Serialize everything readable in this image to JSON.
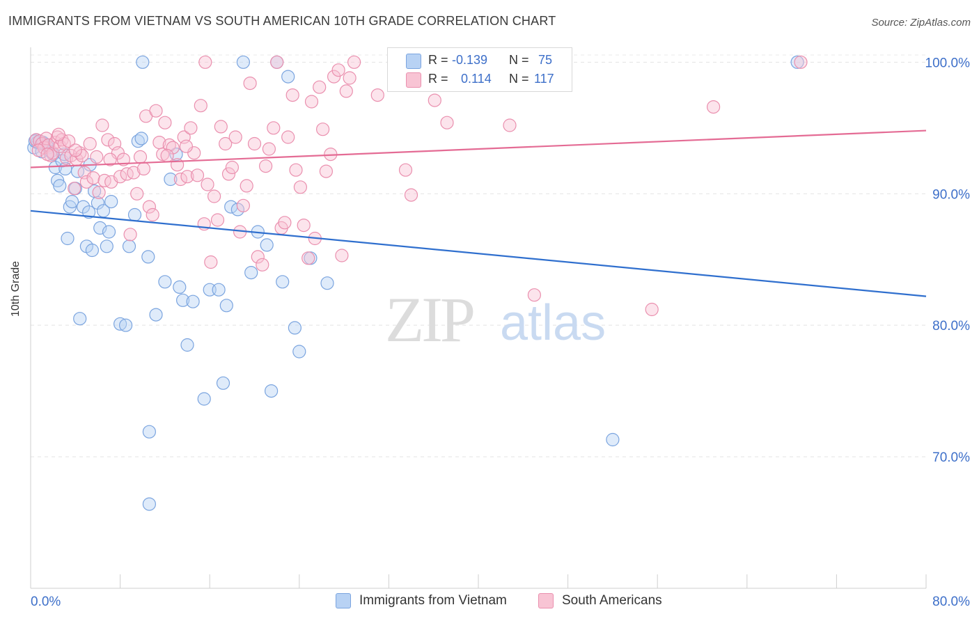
{
  "title": "IMMIGRANTS FROM VIETNAM VS SOUTH AMERICAN 10TH GRADE CORRELATION CHART",
  "source": "Source: ZipAtlas.com",
  "watermark": {
    "zip": "ZIP",
    "atlas": "atlas"
  },
  "legend": {
    "r_label": "R =",
    "n_label": "N =",
    "series": [
      {
        "r": "-0.139",
        "n": "75",
        "fill": "#b8d2f4",
        "stroke": "#7aa4df"
      },
      {
        "r": "0.114",
        "n": "117",
        "fill": "#f8c4d4",
        "stroke": "#ea8fae"
      }
    ]
  },
  "colors": {
    "blue_line": "#2f6fce",
    "pink_line": "#e46b94",
    "axis_text": "#3d6fc9"
  },
  "chart_data": {
    "type": "scatter",
    "title": "IMMIGRANTS FROM VIETNAM VS SOUTH AMERICAN 10TH GRADE CORRELATION CHART",
    "xlabel": "",
    "ylabel": "10th Grade",
    "xlim": [
      0,
      80
    ],
    "ylim": [
      60,
      101.5
    ],
    "x_tick_labels": [
      "0.0%",
      "80.0%"
    ],
    "y_ticks": [
      70,
      80,
      90,
      100
    ],
    "y_tick_labels": [
      "70.0%",
      "80.0%",
      "90.0%",
      "100.0%"
    ],
    "grid": true,
    "legend_position": "bottom",
    "series": [
      {
        "name": "Immigrants from Vietnam",
        "color": "#7aa4df",
        "trend": {
          "x": [
            0,
            80
          ],
          "y": [
            88.7,
            82.2
          ]
        },
        "points": [
          [
            0.3,
            93.5
          ],
          [
            0.5,
            94.1
          ],
          [
            0.6,
            93.9
          ],
          [
            0.8,
            94.0
          ],
          [
            1.0,
            93.2
          ],
          [
            1.2,
            93.8
          ],
          [
            1.4,
            93.7
          ],
          [
            1.6,
            93.5
          ],
          [
            1.8,
            93.2
          ],
          [
            2.0,
            93.0
          ],
          [
            2.2,
            92.0
          ],
          [
            2.4,
            91.0
          ],
          [
            2.6,
            90.6
          ],
          [
            2.8,
            92.5
          ],
          [
            3.1,
            91.9
          ],
          [
            3.3,
            86.6
          ],
          [
            3.5,
            89.0
          ],
          [
            3.7,
            89.4
          ],
          [
            4.0,
            90.4
          ],
          [
            4.2,
            91.7
          ],
          [
            4.4,
            80.5
          ],
          [
            4.7,
            89.0
          ],
          [
            5.0,
            86.0
          ],
          [
            5.2,
            88.6
          ],
          [
            5.5,
            85.7
          ],
          [
            5.7,
            90.2
          ],
          [
            6.0,
            89.3
          ],
          [
            6.2,
            87.4
          ],
          [
            6.5,
            88.7
          ],
          [
            6.8,
            86.0
          ],
          [
            7.0,
            87.1
          ],
          [
            7.2,
            89.4
          ],
          [
            8.0,
            80.1
          ],
          [
            8.5,
            80.0
          ],
          [
            8.8,
            86.0
          ],
          [
            9.3,
            88.4
          ],
          [
            9.6,
            94.0
          ],
          [
            9.9,
            94.2
          ],
          [
            10.0,
            100.0
          ],
          [
            10.5,
            85.2
          ],
          [
            11.2,
            80.8
          ],
          [
            12.0,
            83.3
          ],
          [
            12.5,
            91.1
          ],
          [
            13.0,
            93.0
          ],
          [
            13.3,
            82.9
          ],
          [
            13.6,
            81.9
          ],
          [
            14.0,
            78.5
          ],
          [
            14.5,
            81.8
          ],
          [
            15.5,
            74.4
          ],
          [
            16.0,
            82.7
          ],
          [
            16.8,
            82.7
          ],
          [
            17.2,
            75.6
          ],
          [
            17.5,
            81.5
          ],
          [
            17.9,
            89.0
          ],
          [
            18.5,
            88.8
          ],
          [
            19.0,
            100.0
          ],
          [
            19.7,
            84.0
          ],
          [
            20.3,
            87.1
          ],
          [
            21.1,
            86.1
          ],
          [
            21.5,
            75.0
          ],
          [
            22.0,
            100.0
          ],
          [
            22.5,
            83.3
          ],
          [
            23.0,
            98.9
          ],
          [
            23.6,
            79.8
          ],
          [
            24.0,
            78.0
          ],
          [
            25.0,
            85.1
          ],
          [
            26.5,
            83.2
          ],
          [
            10.6,
            71.9
          ],
          [
            10.6,
            66.4
          ],
          [
            52.0,
            71.3
          ],
          [
            68.5,
            100.0
          ],
          [
            0.4,
            94.0
          ],
          [
            1.1,
            93.9
          ],
          [
            3.0,
            93.0
          ],
          [
            5.3,
            92.2
          ]
        ]
      },
      {
        "name": "South Americans",
        "color": "#ea8fae",
        "trend": {
          "x": [
            0,
            80
          ],
          "y": [
            92.0,
            94.8
          ]
        },
        "points": [
          [
            0.5,
            94.1
          ],
          [
            0.8,
            94.0
          ],
          [
            1.0,
            93.8
          ],
          [
            1.2,
            93.5
          ],
          [
            1.4,
            94.2
          ],
          [
            1.6,
            93.7
          ],
          [
            1.8,
            92.9
          ],
          [
            2.0,
            93.1
          ],
          [
            2.2,
            93.9
          ],
          [
            2.4,
            94.3
          ],
          [
            2.6,
            93.6
          ],
          [
            2.8,
            94.1
          ],
          [
            3.0,
            93.8
          ],
          [
            3.2,
            92.7
          ],
          [
            3.4,
            94.0
          ],
          [
            3.6,
            92.9
          ],
          [
            3.9,
            90.4
          ],
          [
            4.1,
            92.6
          ],
          [
            4.4,
            93.1
          ],
          [
            4.6,
            92.9
          ],
          [
            4.8,
            91.6
          ],
          [
            5.0,
            90.9
          ],
          [
            5.3,
            93.8
          ],
          [
            5.6,
            91.2
          ],
          [
            5.9,
            92.8
          ],
          [
            6.1,
            90.1
          ],
          [
            6.4,
            95.2
          ],
          [
            6.6,
            91.0
          ],
          [
            6.9,
            94.1
          ],
          [
            7.2,
            90.9
          ],
          [
            7.5,
            93.8
          ],
          [
            7.8,
            93.1
          ],
          [
            8.0,
            91.3
          ],
          [
            8.3,
            92.6
          ],
          [
            8.6,
            91.5
          ],
          [
            8.9,
            86.9
          ],
          [
            9.2,
            91.6
          ],
          [
            9.5,
            90.0
          ],
          [
            9.8,
            92.8
          ],
          [
            10.1,
            91.9
          ],
          [
            10.3,
            95.9
          ],
          [
            10.6,
            89.0
          ],
          [
            10.9,
            88.4
          ],
          [
            11.2,
            96.3
          ],
          [
            11.5,
            93.9
          ],
          [
            11.8,
            93.0
          ],
          [
            12.0,
            95.4
          ],
          [
            12.4,
            93.7
          ],
          [
            12.7,
            93.5
          ],
          [
            13.1,
            92.2
          ],
          [
            13.4,
            91.1
          ],
          [
            13.7,
            94.3
          ],
          [
            14.0,
            91.3
          ],
          [
            14.3,
            95.0
          ],
          [
            14.6,
            93.1
          ],
          [
            14.9,
            91.4
          ],
          [
            15.2,
            96.7
          ],
          [
            15.5,
            87.7
          ],
          [
            15.8,
            90.7
          ],
          [
            16.1,
            84.8
          ],
          [
            16.4,
            89.8
          ],
          [
            16.7,
            88.0
          ],
          [
            17.0,
            95.1
          ],
          [
            17.4,
            93.8
          ],
          [
            17.7,
            91.5
          ],
          [
            18.0,
            92.0
          ],
          [
            18.3,
            94.3
          ],
          [
            18.7,
            87.1
          ],
          [
            19.0,
            89.1
          ],
          [
            19.3,
            90.6
          ],
          [
            19.6,
            98.4
          ],
          [
            20.0,
            93.8
          ],
          [
            20.3,
            85.2
          ],
          [
            20.7,
            84.6
          ],
          [
            21.0,
            92.1
          ],
          [
            21.3,
            93.4
          ],
          [
            21.7,
            95.0
          ],
          [
            22.0,
            100.0
          ],
          [
            22.4,
            87.4
          ],
          [
            22.7,
            87.8
          ],
          [
            23.0,
            94.3
          ],
          [
            23.4,
            97.5
          ],
          [
            23.7,
            91.8
          ],
          [
            24.1,
            90.5
          ],
          [
            24.4,
            87.6
          ],
          [
            24.8,
            85.1
          ],
          [
            25.1,
            97.0
          ],
          [
            25.4,
            86.6
          ],
          [
            25.8,
            98.1
          ],
          [
            26.1,
            94.9
          ],
          [
            26.4,
            91.7
          ],
          [
            26.8,
            93.0
          ],
          [
            27.1,
            98.9
          ],
          [
            27.5,
            99.4
          ],
          [
            27.8,
            85.3
          ],
          [
            28.2,
            97.8
          ],
          [
            28.5,
            98.8
          ],
          [
            28.9,
            100.0
          ],
          [
            15.6,
            100.0
          ],
          [
            31.0,
            97.5
          ],
          [
            33.5,
            91.8
          ],
          [
            34.0,
            89.9
          ],
          [
            35.5,
            98.5
          ],
          [
            36.1,
            97.1
          ],
          [
            37.2,
            95.4
          ],
          [
            42.8,
            95.2
          ],
          [
            45.0,
            82.3
          ],
          [
            55.5,
            81.2
          ],
          [
            61.0,
            96.6
          ],
          [
            68.8,
            100.0
          ],
          [
            0.7,
            93.3
          ],
          [
            1.5,
            93.0
          ],
          [
            2.5,
            94.5
          ],
          [
            4.0,
            93.3
          ],
          [
            7.1,
            92.6
          ],
          [
            12.2,
            92.9
          ],
          [
            13.9,
            93.6
          ]
        ]
      }
    ]
  }
}
